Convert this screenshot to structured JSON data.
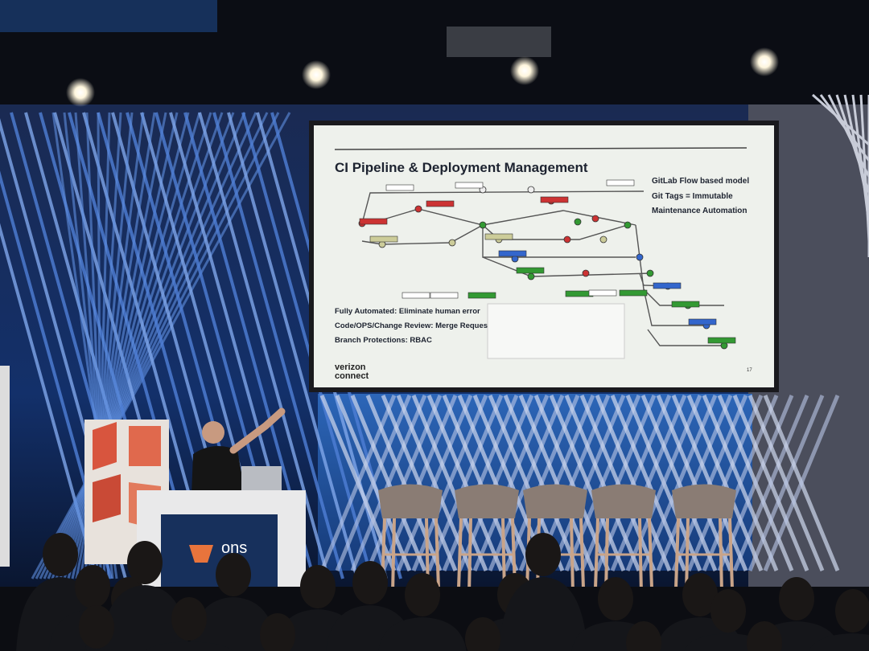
{
  "slide": {
    "title": "CI Pipeline & Deployment Management",
    "side_points": [
      "GitLab Flow based model",
      "Git Tags = Immutable",
      "Maintenance Automation"
    ],
    "bullets": [
      "Fully Automated: Eliminate human error",
      "Code/OPS/Change Review: Merge Request",
      "Branch Protections: RBAC"
    ],
    "logo": [
      "verizon",
      "connect"
    ],
    "page_number": "17"
  },
  "podium": {
    "logo": "ons"
  }
}
